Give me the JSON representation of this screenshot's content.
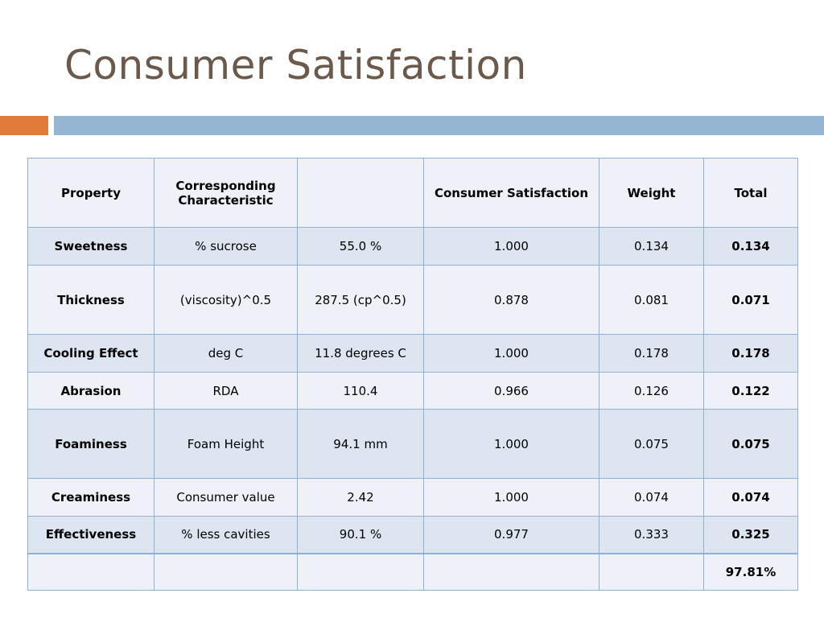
{
  "title": "Consumer Satisfaction",
  "colors": {
    "title": "#6b5a4b",
    "accent_orange": "#e07b39",
    "accent_blue": "#94b6d2",
    "table_border": "#8fb2d4",
    "row_light": "#eef2f8",
    "row_dark": "#dce5f0"
  },
  "table": {
    "headers": [
      "Property",
      "Corresponding Characteristic",
      "",
      "Consumer Satisfaction",
      "Weight",
      "Total"
    ],
    "rows": [
      {
        "property": "Sweetness",
        "characteristic": "% sucrose",
        "value": "55.0 %",
        "satisfaction": "1.000",
        "weight": "0.134",
        "total": "0.134"
      },
      {
        "property": "Thickness",
        "characteristic": "(viscosity)^0.5",
        "value": "287.5 (cp^0.5)",
        "satisfaction": "0.878",
        "weight": "0.081",
        "total": "0.071"
      },
      {
        "property": "Cooling Effect",
        "characteristic": "deg C",
        "value": "11.8 degrees C",
        "satisfaction": "1.000",
        "weight": "0.178",
        "total": "0.178"
      },
      {
        "property": "Abrasion",
        "characteristic": "RDA",
        "value": "110.4",
        "satisfaction": "0.966",
        "weight": "0.126",
        "total": "0.122"
      },
      {
        "property": "Foaminess",
        "characteristic": "Foam Height",
        "value": "94.1 mm",
        "satisfaction": "1.000",
        "weight": "0.075",
        "total": "0.075"
      },
      {
        "property": "Creaminess",
        "characteristic": "Consumer value",
        "value": "2.42",
        "satisfaction": "1.000",
        "weight": "0.074",
        "total": "0.074"
      },
      {
        "property": "Effectiveness",
        "characteristic": "% less cavities",
        "value": "90.1 %",
        "satisfaction": "0.977",
        "weight": "0.333",
        "total": "0.325"
      }
    ],
    "grand_total": "97.81%"
  }
}
